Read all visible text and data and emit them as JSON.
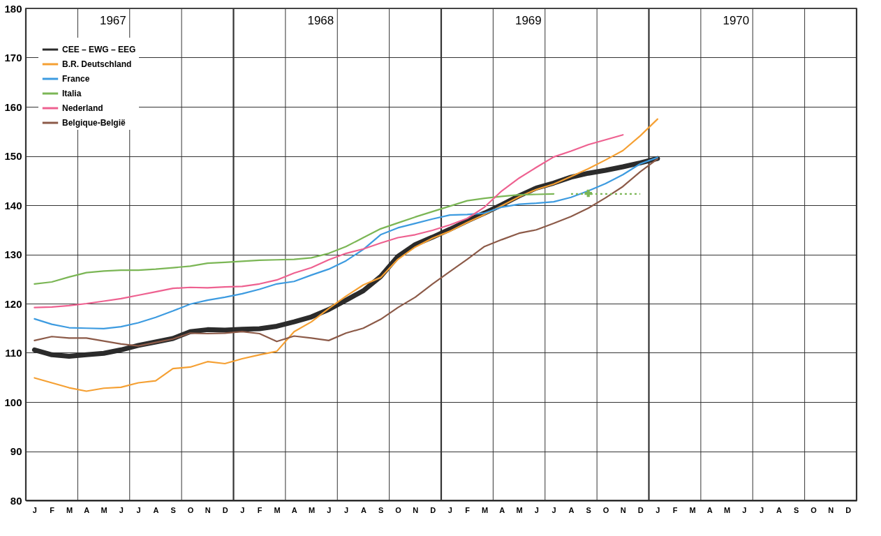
{
  "chart_data": {
    "type": "line",
    "categories": [
      "J",
      "F",
      "M",
      "A",
      "M",
      "J",
      "J",
      "A",
      "S",
      "O",
      "N",
      "D",
      "J",
      "F",
      "M",
      "A",
      "M",
      "J",
      "J",
      "A",
      "S",
      "O",
      "N",
      "D",
      "J",
      "F",
      "M",
      "A",
      "M",
      "J",
      "J",
      "A",
      "S",
      "O",
      "N",
      "D",
      "J",
      "F",
      "M",
      "A",
      "M",
      "J",
      "J",
      "A",
      "S",
      "O",
      "N",
      "D"
    ],
    "annotations": [
      "1967",
      "1968",
      "1969",
      "1970"
    ],
    "ylim": [
      80,
      180
    ],
    "yticks": [
      80,
      90,
      100,
      110,
      120,
      130,
      140,
      150,
      160,
      170,
      180
    ],
    "grid": true,
    "legend": "top left",
    "marker": "none",
    "line_style": "solid",
    "series": [
      {
        "name": "CEE – EWG – EEG",
        "color": "#2b2b2b",
        "values": [
          110.6,
          109.6,
          109.3,
          109.6,
          109.9,
          110.6,
          111.5,
          112.2,
          112.9,
          114.3,
          114.7,
          114.6,
          114.8,
          114.9,
          115.4,
          116.3,
          117.3,
          118.8,
          120.7,
          122.6,
          125.5,
          129.6,
          132.0,
          133.5,
          135.1,
          136.8,
          138.4,
          140.1,
          141.9,
          143.5,
          144.5,
          145.7,
          146.5,
          147.1,
          147.8,
          148.6,
          149.5,
          null,
          null,
          null,
          null,
          null,
          null,
          null,
          null,
          null,
          null,
          null
        ]
      },
      {
        "name": "B.R. Deutschland",
        "color": "#f5a033",
        "values": [
          104.9,
          103.9,
          102.9,
          102.2,
          102.8,
          103.0,
          103.9,
          104.3,
          106.8,
          107.1,
          108.2,
          107.8,
          108.8,
          109.6,
          110.3,
          114.3,
          116.3,
          119.0,
          121.5,
          123.8,
          125.3,
          129.0,
          131.5,
          133.3,
          134.7,
          136.5,
          138.1,
          139.9,
          141.7,
          143.2,
          144.3,
          145.8,
          147.4,
          149.2,
          151.1,
          154.1,
          157.5,
          null,
          null,
          null,
          null,
          null,
          null,
          null,
          null,
          null,
          null,
          null
        ]
      },
      {
        "name": "France",
        "color": "#3d9be0",
        "values": [
          116.9,
          115.8,
          115.1,
          115.0,
          114.9,
          115.3,
          116.1,
          117.2,
          118.5,
          119.9,
          120.7,
          121.3,
          122.0,
          122.9,
          124.0,
          124.5,
          125.8,
          127.0,
          128.7,
          131.0,
          134.0,
          135.4,
          136.3,
          137.2,
          138.0,
          138.1,
          138.4,
          139.6,
          140.2,
          140.4,
          140.7,
          141.6,
          142.9,
          144.4,
          146.2,
          148.4,
          149.7,
          null,
          null,
          null,
          null,
          null,
          null,
          null,
          null,
          null,
          null,
          null
        ]
      },
      {
        "name": "Italia",
        "color": "#7bb655",
        "values": [
          124.0,
          124.4,
          125.4,
          126.3,
          126.6,
          126.8,
          126.8,
          127.0,
          127.3,
          127.6,
          128.2,
          128.4,
          128.6,
          128.8,
          128.9,
          129.0,
          129.3,
          130.2,
          131.6,
          133.4,
          135.2,
          136.4,
          137.6,
          138.7,
          139.8,
          140.9,
          141.4,
          141.8,
          142.1,
          142.2,
          142.3,
          null,
          null,
          null,
          null,
          null,
          null,
          null,
          null,
          null,
          null,
          null,
          null,
          null,
          null,
          null,
          null,
          null
        ]
      },
      {
        "name": "Nederland",
        "color": "#ee6190",
        "values": [
          119.2,
          119.3,
          119.6,
          120.0,
          120.5,
          121.0,
          121.7,
          122.4,
          123.1,
          123.3,
          123.2,
          123.4,
          123.5,
          124.0,
          124.8,
          126.2,
          127.3,
          128.9,
          130.2,
          131.1,
          132.3,
          133.4,
          134.0,
          134.9,
          136.0,
          137.3,
          139.6,
          142.9,
          145.5,
          147.7,
          149.8,
          151.0,
          152.3,
          153.3,
          154.3,
          null,
          null,
          null,
          null,
          null,
          null,
          null,
          null,
          null,
          null,
          null,
          null,
          null
        ]
      },
      {
        "name": "Belgique-België",
        "color": "#8c5a48",
        "values": [
          112.5,
          113.3,
          113.0,
          113.0,
          112.4,
          111.8,
          111.4,
          112.1,
          112.8,
          114.0,
          113.9,
          114.0,
          114.3,
          113.9,
          112.3,
          113.4,
          113.0,
          112.5,
          114.0,
          115.0,
          116.8,
          119.2,
          121.3,
          124.0,
          126.5,
          129.0,
          131.6,
          133.0,
          134.3,
          135.0,
          136.3,
          137.7,
          139.4,
          141.5,
          143.8,
          146.8,
          149.4,
          null,
          null,
          null,
          null,
          null,
          null,
          null,
          null,
          null,
          null,
          null
        ]
      },
      {
        "color": "#7bb655",
        "line_style": "dotted",
        "values": [
          null,
          null,
          null,
          null,
          null,
          null,
          null,
          null,
          null,
          null,
          null,
          null,
          null,
          null,
          null,
          null,
          null,
          null,
          null,
          null,
          null,
          null,
          null,
          null,
          null,
          null,
          null,
          null,
          null,
          null,
          null,
          142.3,
          142.3,
          142.3,
          142.3,
          142.3,
          null,
          null,
          null,
          null,
          null,
          null,
          null,
          null,
          null,
          null,
          null,
          null
        ]
      },
      {
        "type": "scatter",
        "marker": "cross",
        "color": "#7bb655",
        "values": [
          null,
          null,
          null,
          null,
          null,
          null,
          null,
          null,
          null,
          null,
          null,
          null,
          null,
          null,
          null,
          null,
          null,
          null,
          null,
          null,
          null,
          null,
          null,
          null,
          null,
          null,
          null,
          null,
          null,
          null,
          null,
          null,
          142.4,
          null,
          null,
          null,
          null,
          null,
          null,
          null,
          null,
          null,
          null,
          null,
          null,
          null,
          null,
          null
        ]
      }
    ]
  }
}
